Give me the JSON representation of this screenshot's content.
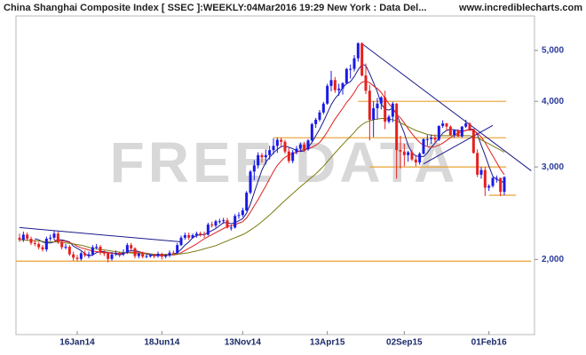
{
  "chart_data": {
    "type": "candlestick",
    "title": "China Shanghai Composite Index [ SSEC ]:WEEKLY:04Mar2016 19:29 New York : Data Del...",
    "source": "www.incrediblecharts.com",
    "watermark": "FREE DATA",
    "log_scale": true,
    "ylim": [
      1450,
      5770
    ],
    "yticks": [
      {
        "value": 2000,
        "label": "2,000"
      },
      {
        "value": 3000,
        "label": "3,000"
      },
      {
        "value": 4000,
        "label": "4,000"
      },
      {
        "value": 5000,
        "label": "5,000"
      }
    ],
    "up_color": "#1a1ae6",
    "down_color": "#e62020",
    "categories": [
      null,
      null,
      null,
      null,
      null,
      null,
      null,
      null,
      null,
      null,
      null,
      null,
      null,
      null,
      null,
      "16Jan14",
      null,
      null,
      null,
      null,
      null,
      null,
      null,
      null,
      null,
      null,
      null,
      null,
      null,
      null,
      null,
      null,
      null,
      null,
      null,
      null,
      null,
      "18Jun14",
      null,
      null,
      null,
      null,
      null,
      null,
      null,
      null,
      null,
      null,
      null,
      null,
      null,
      null,
      null,
      null,
      null,
      null,
      null,
      null,
      "13Nov14",
      null,
      null,
      null,
      null,
      null,
      null,
      null,
      null,
      null,
      null,
      null,
      null,
      null,
      null,
      null,
      null,
      null,
      null,
      null,
      null,
      null,
      "13Apr15",
      null,
      null,
      null,
      null,
      null,
      null,
      null,
      null,
      null,
      null,
      null,
      null,
      null,
      null,
      null,
      null,
      null,
      null,
      null,
      "02Sep15",
      null,
      null,
      null,
      null,
      null,
      null,
      null,
      null,
      null,
      null,
      null,
      null,
      null,
      null,
      null,
      null,
      null,
      null,
      null,
      null,
      null,
      "01Feb16",
      null,
      null,
      null,
      null
    ],
    "open": [
      2200,
      2180,
      2230,
      2190,
      2150,
      2140,
      2110,
      2090,
      2190,
      2200,
      2240,
      2160,
      2110,
      2115,
      2045,
      2015,
      2005,
      2055,
      2035,
      2045,
      2110,
      2115,
      2060,
      2055,
      2005,
      2045,
      2055,
      2045,
      2060,
      2130,
      2100,
      2030,
      2050,
      2025,
      2030,
      2035,
      2030,
      2050,
      2025,
      2035,
      2060,
      2055,
      2130,
      2200,
      2225,
      2200,
      2225,
      2240,
      2235,
      2230,
      2330,
      2320,
      2365,
      2365,
      2375,
      2300,
      2300,
      2420,
      2430,
      2480,
      2680,
      2940,
      3020,
      3160,
      3130,
      3160,
      3230,
      3290,
      3380,
      3350,
      3210,
      3080,
      3200,
      3250,
      3310,
      3240,
      3370,
      3620,
      3690,
      3810,
      3960,
      4280,
      4390,
      4200,
      4230,
      4330,
      4610,
      4610,
      4830,
      5160,
      4480,
      4190,
      3690,
      3880,
      3960,
      4070,
      3660,
      3740,
      3960,
      3230,
      3210,
      3160,
      3200,
      3100,
      3060,
      3180,
      3390,
      3390,
      3410,
      3380,
      3590,
      3630,
      3580,
      3450,
      3520,
      3430,
      3580,
      3630,
      3540,
      3190,
      2900,
      2960,
      2740,
      2760,
      2860,
      2860,
      2690
    ],
    "high": [
      2240,
      2260,
      2250,
      2210,
      2180,
      2160,
      2130,
      2210,
      2230,
      2270,
      2260,
      2180,
      2140,
      2130,
      2070,
      2040,
      2070,
      2080,
      2070,
      2130,
      2140,
      2130,
      2080,
      2070,
      2060,
      2080,
      2070,
      2090,
      2150,
      2150,
      2110,
      2060,
      2070,
      2050,
      2050,
      2050,
      2070,
      2060,
      2050,
      2080,
      2080,
      2150,
      2220,
      2250,
      2250,
      2240,
      2260,
      2260,
      2260,
      2350,
      2360,
      2380,
      2390,
      2400,
      2400,
      2330,
      2440,
      2460,
      2510,
      2700,
      2960,
      3090,
      3200,
      3190,
      3240,
      3290,
      3400,
      3410,
      3410,
      3380,
      3260,
      3230,
      3290,
      3340,
      3350,
      3390,
      3640,
      3720,
      3850,
      3990,
      4320,
      4570,
      4450,
      4320,
      4350,
      4630,
      4700,
      4900,
      5180,
      5180,
      4720,
      4300,
      4000,
      4060,
      4090,
      4190,
      3770,
      3990,
      3970,
      3440,
      3320,
      3220,
      3240,
      3160,
      3200,
      3400,
      3450,
      3460,
      3460,
      3600,
      3680,
      3640,
      3600,
      3530,
      3540,
      3590,
      3690,
      3650,
      3540,
      3240,
      3000,
      3000,
      2780,
      2870,
      2890,
      2860,
      2880
    ],
    "low": [
      2160,
      2160,
      2170,
      2130,
      2120,
      2090,
      2070,
      2070,
      2170,
      2180,
      2140,
      2090,
      2090,
      2030,
      1990,
      1985,
      1990,
      2020,
      2010,
      2030,
      2090,
      2040,
      2030,
      1975,
      1990,
      2030,
      2020,
      2030,
      2050,
      2080,
      2010,
      2010,
      2010,
      2010,
      2015,
      2010,
      2015,
      2000,
      2010,
      2020,
      2040,
      2050,
      2120,
      2180,
      2180,
      2190,
      2200,
      2210,
      2200,
      2220,
      2300,
      2300,
      2340,
      2340,
      2290,
      2270,
      2290,
      2390,
      2410,
      2470,
      2660,
      2830,
      2980,
      3060,
      3040,
      3100,
      3170,
      3190,
      3280,
      3180,
      3050,
      3050,
      3170,
      3210,
      3200,
      3220,
      3340,
      3560,
      3660,
      3780,
      3940,
      4180,
      4150,
      4100,
      4120,
      4310,
      4420,
      4560,
      4760,
      4460,
      4130,
      3370,
      3420,
      3700,
      3860,
      3540,
      3630,
      3650,
      2850,
      2980,
      3010,
      3070,
      3080,
      3010,
      3030,
      3170,
      3290,
      3320,
      3330,
      3360,
      3560,
      3520,
      3440,
      3410,
      3420,
      3410,
      3560,
      3510,
      3180,
      2870,
      2850,
      2640,
      2700,
      2740,
      2800,
      2640,
      2650
    ],
    "close": [
      2180,
      2230,
      2190,
      2150,
      2140,
      2110,
      2090,
      2190,
      2200,
      2240,
      2160,
      2110,
      2115,
      2045,
      2015,
      2005,
      2055,
      2035,
      2045,
      2110,
      2115,
      2060,
      2055,
      2005,
      2045,
      2055,
      2045,
      2060,
      2130,
      2100,
      2030,
      2050,
      2025,
      2030,
      2035,
      2030,
      2050,
      2025,
      2035,
      2060,
      2055,
      2130,
      2200,
      2225,
      2200,
      2225,
      2240,
      2235,
      2230,
      2330,
      2320,
      2365,
      2365,
      2375,
      2300,
      2300,
      2420,
      2430,
      2480,
      2680,
      2940,
      3020,
      3160,
      3130,
      3160,
      3230,
      3290,
      3380,
      3350,
      3210,
      3080,
      3200,
      3250,
      3310,
      3240,
      3370,
      3620,
      3690,
      3810,
      3960,
      4280,
      4390,
      4200,
      4230,
      4330,
      4610,
      4610,
      4830,
      5160,
      4480,
      4190,
      3690,
      3880,
      3960,
      4070,
      3660,
      3740,
      3960,
      3230,
      3210,
      3160,
      3200,
      3100,
      3060,
      3180,
      3390,
      3390,
      3410,
      3380,
      3590,
      3630,
      3580,
      3450,
      3520,
      3430,
      3580,
      3630,
      3540,
      3190,
      2900,
      2960,
      2740,
      2760,
      2860,
      2860,
      2690,
      2870
    ],
    "series": [
      {
        "color": "#1a1a8c",
        "values": [
          null,
          null,
          null,
          null,
          2190,
          2180,
          2160,
          2150,
          2150,
          2160,
          2180,
          2180,
          2170,
          2160,
          2120,
          2100,
          2080,
          2050,
          2030,
          2040,
          2060,
          2070,
          2070,
          2060,
          2060,
          2050,
          2040,
          2050,
          2070,
          2080,
          2080,
          2070,
          2060,
          2050,
          2040,
          2035,
          2035,
          2035,
          2035,
          2040,
          2045,
          2060,
          2090,
          2130,
          2160,
          2200,
          2220,
          2230,
          2230,
          2250,
          2270,
          2290,
          2320,
          2350,
          2350,
          2340,
          2350,
          2370,
          2390,
          2450,
          2550,
          2680,
          2820,
          2960,
          3060,
          3130,
          3190,
          3240,
          3280,
          3290,
          3270,
          3250,
          3220,
          3210,
          3220,
          3270,
          3340,
          3440,
          3540,
          3660,
          3800,
          3940,
          4050,
          4130,
          4250,
          4320,
          4360,
          4460,
          4590,
          4700,
          4680,
          4520,
          4340,
          4170,
          3960,
          3860,
          3850,
          3880,
          3780,
          3630,
          3480,
          3300,
          3190,
          3150,
          3140,
          3140,
          3190,
          3270,
          3330,
          3400,
          3480,
          3520,
          3540,
          3530,
          3520,
          3510,
          3520,
          3540,
          3540,
          3460,
          3300,
          3160,
          3010,
          2880,
          2840,
          2820,
          2800
        ]
      },
      {
        "color": "#e02020",
        "values": [
          null,
          null,
          null,
          null,
          null,
          null,
          null,
          null,
          null,
          2175,
          2175,
          2170,
          2165,
          2155,
          2140,
          2120,
          2105,
          2095,
          2085,
          2075,
          2070,
          2065,
          2060,
          2060,
          2055,
          2055,
          2055,
          2055,
          2060,
          2065,
          2065,
          2065,
          2060,
          2055,
          2050,
          2045,
          2040,
          2040,
          2040,
          2040,
          2040,
          2045,
          2060,
          2080,
          2100,
          2120,
          2140,
          2165,
          2190,
          2210,
          2230,
          2250,
          2270,
          2290,
          2310,
          2320,
          2330,
          2345,
          2360,
          2400,
          2460,
          2530,
          2600,
          2680,
          2760,
          2850,
          2940,
          3020,
          3080,
          3130,
          3160,
          3180,
          3200,
          3220,
          3240,
          3250,
          3270,
          3300,
          3340,
          3410,
          3500,
          3600,
          3700,
          3790,
          3880,
          3980,
          4060,
          4160,
          4280,
          4350,
          4370,
          4340,
          4280,
          4230,
          4160,
          4050,
          3960,
          3880,
          3780,
          3720,
          3640,
          3550,
          3470,
          3400,
          3340,
          3300,
          3280,
          3270,
          3280,
          3300,
          3330,
          3370,
          3410,
          3450,
          3480,
          3500,
          3520,
          3530,
          3520,
          3480,
          3420,
          3340,
          3240,
          3150,
          3060,
          2970,
          2900
        ]
      },
      {
        "color": "#7a7a10",
        "values": [
          2180,
          2180,
          2175,
          2175,
          2170,
          2170,
          2165,
          2160,
          2160,
          2160,
          2160,
          2155,
          2150,
          2145,
          2140,
          2135,
          2130,
          2120,
          2110,
          2100,
          2095,
          2090,
          2085,
          2080,
          2075,
          2070,
          2065,
          2062,
          2060,
          2058,
          2056,
          2054,
          2052,
          2050,
          2048,
          2046,
          2045,
          2044,
          2044,
          2044,
          2045,
          2047,
          2050,
          2055,
          2060,
          2068,
          2076,
          2085,
          2095,
          2105,
          2115,
          2125,
          2140,
          2155,
          2170,
          2185,
          2200,
          2215,
          2230,
          2250,
          2275,
          2300,
          2330,
          2360,
          2395,
          2430,
          2470,
          2510,
          2550,
          2590,
          2630,
          2670,
          2710,
          2750,
          2790,
          2830,
          2870,
          2910,
          2960,
          3010,
          3070,
          3130,
          3190,
          3250,
          3310,
          3370,
          3430,
          3490,
          3560,
          3610,
          3650,
          3670,
          3690,
          3700,
          3710,
          3710,
          3700,
          3690,
          3670,
          3640,
          3610,
          3580,
          3550,
          3520,
          3500,
          3480,
          3460,
          3450,
          3440,
          3440,
          3440,
          3440,
          3440,
          3440,
          3440,
          3440,
          3440,
          3440,
          3430,
          3410,
          3380,
          3350,
          3320,
          3290,
          3260,
          3230,
          3200
        ]
      }
    ],
    "levels": [
      4000,
      3410,
      3000,
      2650,
      1985
    ],
    "level_color": "#e8a030",
    "trendlines": [
      [
        2300,
        2160
      ],
      [
        5150,
        2950
      ],
      [
        3040,
        3600
      ]
    ],
    "trendline_color": "#1a1a8c"
  }
}
